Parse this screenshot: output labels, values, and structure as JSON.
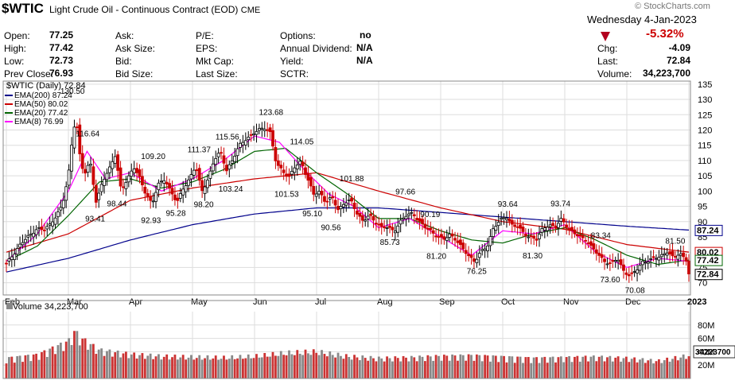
{
  "header": {
    "symbol": "$WTIC",
    "description": "Light Crude Oil - Continuous Contract (EOD)",
    "exchange": "CME",
    "watermark": "© StockCharts.com",
    "date_line": "Wednesday  4-Jan-2023",
    "pct_change": "-5.32%",
    "change_direction_icon": "down-triangle-icon",
    "stats": [
      {
        "label": "Open:",
        "value": "77.25"
      },
      {
        "label": "High:",
        "value": "77.42"
      },
      {
        "label": "Low:",
        "value": "72.73"
      },
      {
        "label": "Prev Close:",
        "value": "76.93"
      },
      {
        "label": "Ask:",
        "value": ""
      },
      {
        "label": "Ask Size:",
        "value": ""
      },
      {
        "label": "Bid:",
        "value": ""
      },
      {
        "label": "Bid Size:",
        "value": ""
      },
      {
        "label": "P/E:",
        "value": ""
      },
      {
        "label": "EPS:",
        "value": ""
      },
      {
        "label": "Mkt Cap:",
        "value": ""
      },
      {
        "label": "Last Size:",
        "value": ""
      },
      {
        "label": "Options:",
        "value": "no"
      },
      {
        "label": "Annual Dividend:",
        "value": "N/A"
      },
      {
        "label": "Yield:",
        "value": "N/A"
      },
      {
        "label": "SCTR:",
        "value": ""
      },
      {
        "label": "Chg:",
        "value": "-4.09"
      },
      {
        "label": "Last:",
        "value": "72.84"
      },
      {
        "label": "Volume:",
        "value": "34,223,700"
      }
    ]
  },
  "colors": {
    "up": "#000000",
    "down": "#cc0000",
    "ema200": "#00008b",
    "ema50": "#cc0000",
    "ema20": "#006400",
    "ema8": "#ff00ff",
    "vol_up": "#888888",
    "vol_down": "#cc3333",
    "grid": "#dddddd"
  },
  "chart_data": [
    {
      "type": "candlestick",
      "title": "$WTIC (Daily) 72.84",
      "legend": [
        {
          "name": "EMA(200) 87.24",
          "color": "#00008b"
        },
        {
          "name": "EMA(50) 80.02",
          "color": "#cc0000"
        },
        {
          "name": "EMA(20) 77.42",
          "color": "#006400"
        },
        {
          "name": "EMA(8) 76.99",
          "color": "#ff00ff"
        }
      ],
      "legend_position": "top-left",
      "y_axis_position": "right",
      "ylim": [
        66,
        136
      ],
      "y_ticks": [
        70,
        75,
        80,
        85,
        90,
        95,
        100,
        105,
        110,
        115,
        120,
        125,
        130,
        135
      ],
      "x_labels": [
        "Feb",
        "Mar",
        "Apr",
        "May",
        "Jun",
        "Jul",
        "Aug",
        "Sep",
        "Oct",
        "Nov",
        "Dec",
        "2023"
      ],
      "grid": true,
      "price_tags": [
        {
          "value": 87.24,
          "label": "87.24",
          "color": "#00008b"
        },
        {
          "value": 80.02,
          "label": "80.02",
          "color": "#cc0000"
        },
        {
          "value": 77.42,
          "label": "77.42",
          "color": "#006400"
        },
        {
          "value": 72.84,
          "label": "72.84",
          "color": "#000000"
        }
      ],
      "annotations": [
        {
          "label": "130.50",
          "value": 130.5,
          "month": 1.05,
          "pos": "above"
        },
        {
          "label": "116.64",
          "value": 116.64,
          "month": 1.3,
          "pos": "above"
        },
        {
          "label": "93.41",
          "value": 93.41,
          "month": 1.45,
          "pos": "below"
        },
        {
          "label": "98.44",
          "value": 98.44,
          "month": 1.8,
          "pos": "below"
        },
        {
          "label": "109.20",
          "value": 109.2,
          "month": 2.35,
          "pos": "above"
        },
        {
          "label": "92.93",
          "value": 92.93,
          "month": 2.35,
          "pos": "below"
        },
        {
          "label": "95.28",
          "value": 95.28,
          "month": 2.75,
          "pos": "below"
        },
        {
          "label": "111.37",
          "value": 111.37,
          "month": 3.1,
          "pos": "above"
        },
        {
          "label": "98.20",
          "value": 98.2,
          "month": 3.2,
          "pos": "below"
        },
        {
          "label": "115.56",
          "value": 115.56,
          "month": 3.55,
          "pos": "above"
        },
        {
          "label": "103.24",
          "value": 103.24,
          "month": 3.6,
          "pos": "below"
        },
        {
          "label": "123.68",
          "value": 123.68,
          "month": 4.25,
          "pos": "above"
        },
        {
          "label": "101.53",
          "value": 101.53,
          "month": 4.5,
          "pos": "below"
        },
        {
          "label": "114.05",
          "value": 114.05,
          "month": 4.75,
          "pos": "above"
        },
        {
          "label": "95.10",
          "value": 95.1,
          "month": 4.95,
          "pos": "below"
        },
        {
          "label": "90.56",
          "value": 90.56,
          "month": 5.25,
          "pos": "below"
        },
        {
          "label": "101.88",
          "value": 101.88,
          "month": 5.55,
          "pos": "above"
        },
        {
          "label": "85.73",
          "value": 85.73,
          "month": 6.2,
          "pos": "below"
        },
        {
          "label": "97.66",
          "value": 97.66,
          "month": 6.45,
          "pos": "above"
        },
        {
          "label": "90.19",
          "value": 90.19,
          "month": 6.85,
          "pos": "above"
        },
        {
          "label": "81.20",
          "value": 81.2,
          "month": 6.95,
          "pos": "below"
        },
        {
          "label": "76.25",
          "value": 76.25,
          "month": 7.6,
          "pos": "below"
        },
        {
          "label": "93.64",
          "value": 93.64,
          "month": 8.1,
          "pos": "above"
        },
        {
          "label": "81.30",
          "value": 81.3,
          "month": 8.5,
          "pos": "below"
        },
        {
          "label": "93.74",
          "value": 93.74,
          "month": 8.95,
          "pos": "above"
        },
        {
          "label": "83.34",
          "value": 83.34,
          "month": 9.6,
          "pos": "above"
        },
        {
          "label": "73.60",
          "value": 73.6,
          "month": 9.75,
          "pos": "below"
        },
        {
          "label": "70.08",
          "value": 70.08,
          "month": 10.15,
          "pos": "below"
        },
        {
          "label": "81.50",
          "value": 81.5,
          "month": 10.8,
          "pos": "above"
        }
      ],
      "close_path": [
        [
          0,
          76
        ],
        [
          0.1,
          79
        ],
        [
          0.2,
          82
        ],
        [
          0.3,
          84
        ],
        [
          0.4,
          86
        ],
        [
          0.5,
          88
        ],
        [
          0.6,
          87
        ],
        [
          0.7,
          89
        ],
        [
          0.8,
          92
        ],
        [
          0.9,
          95
        ],
        [
          1.0,
          105
        ],
        [
          1.05,
          115
        ],
        [
          1.12,
          125
        ],
        [
          1.18,
          112
        ],
        [
          1.25,
          105
        ],
        [
          1.35,
          110
        ],
        [
          1.45,
          96
        ],
        [
          1.55,
          103
        ],
        [
          1.65,
          107
        ],
        [
          1.75,
          112
        ],
        [
          1.85,
          100
        ],
        [
          1.95,
          104
        ],
        [
          2.05,
          108
        ],
        [
          2.15,
          104
        ],
        [
          2.25,
          99
        ],
        [
          2.35,
          96
        ],
        [
          2.45,
          102
        ],
        [
          2.55,
          104
        ],
        [
          2.65,
          100
        ],
        [
          2.75,
          96
        ],
        [
          2.85,
          101
        ],
        [
          2.95,
          104
        ],
        [
          3.05,
          108
        ],
        [
          3.15,
          100
        ],
        [
          3.25,
          104
        ],
        [
          3.35,
          110
        ],
        [
          3.45,
          113
        ],
        [
          3.55,
          107
        ],
        [
          3.65,
          110
        ],
        [
          3.75,
          115
        ],
        [
          3.85,
          117
        ],
        [
          3.95,
          118
        ],
        [
          4.05,
          120
        ],
        [
          4.15,
          121
        ],
        [
          4.25,
          119
        ],
        [
          4.35,
          109
        ],
        [
          4.45,
          107
        ],
        [
          4.55,
          104
        ],
        [
          4.65,
          108
        ],
        [
          4.75,
          110
        ],
        [
          4.85,
          104
        ],
        [
          4.95,
          99
        ],
        [
          5.05,
          100
        ],
        [
          5.15,
          96
        ],
        [
          5.25,
          98
        ],
        [
          5.35,
          94
        ],
        [
          5.45,
          96
        ],
        [
          5.55,
          97
        ],
        [
          5.65,
          93
        ],
        [
          5.75,
          90
        ],
        [
          5.85,
          92
        ],
        [
          5.95,
          90
        ],
        [
          6.05,
          88
        ],
        [
          6.15,
          88
        ],
        [
          6.25,
          87
        ],
        [
          6.35,
          90
        ],
        [
          6.45,
          92
        ],
        [
          6.55,
          93
        ],
        [
          6.65,
          90
        ],
        [
          6.75,
          88
        ],
        [
          6.85,
          87
        ],
        [
          6.95,
          85
        ],
        [
          7.05,
          84
        ],
        [
          7.15,
          86
        ],
        [
          7.25,
          84
        ],
        [
          7.35,
          81
        ],
        [
          7.45,
          79
        ],
        [
          7.55,
          77
        ],
        [
          7.65,
          80
        ],
        [
          7.75,
          82
        ],
        [
          7.85,
          88
        ],
        [
          7.95,
          90
        ],
        [
          8.05,
          92
        ],
        [
          8.15,
          89
        ],
        [
          8.25,
          88
        ],
        [
          8.35,
          86
        ],
        [
          8.45,
          85
        ],
        [
          8.55,
          84
        ],
        [
          8.65,
          88
        ],
        [
          8.75,
          89
        ],
        [
          8.85,
          88
        ],
        [
          8.95,
          91
        ],
        [
          9.05,
          88
        ],
        [
          9.15,
          86
        ],
        [
          9.25,
          85
        ],
        [
          9.35,
          84
        ],
        [
          9.45,
          81
        ],
        [
          9.55,
          79
        ],
        [
          9.65,
          77
        ],
        [
          9.75,
          76
        ],
        [
          9.85,
          78
        ],
        [
          9.95,
          74
        ],
        [
          10.05,
          72
        ],
        [
          10.15,
          74
        ],
        [
          10.25,
          77
        ],
        [
          10.35,
          77
        ],
        [
          10.45,
          78
        ],
        [
          10.55,
          79
        ],
        [
          10.65,
          80
        ],
        [
          10.75,
          78
        ],
        [
          10.85,
          80
        ],
        [
          10.97,
          76.9
        ],
        [
          11.0,
          72.84
        ]
      ],
      "ema200_path": [
        [
          0,
          73.5
        ],
        [
          1,
          78
        ],
        [
          2,
          84
        ],
        [
          3,
          89
        ],
        [
          4,
          92.5
        ],
        [
          5,
          94.5
        ],
        [
          6,
          94.5
        ],
        [
          7,
          93
        ],
        [
          8,
          91.5
        ],
        [
          9,
          90
        ],
        [
          10,
          88.5
        ],
        [
          11,
          87.24
        ]
      ],
      "ema50_path": [
        [
          0,
          80
        ],
        [
          1,
          86
        ],
        [
          2,
          97
        ],
        [
          3,
          101
        ],
        [
          4,
          104
        ],
        [
          5,
          106
        ],
        [
          6,
          100
        ],
        [
          7,
          94.5
        ],
        [
          8,
          90
        ],
        [
          9,
          87.5
        ],
        [
          10,
          82.5
        ],
        [
          11,
          80.02
        ]
      ],
      "ema20_path": [
        [
          0,
          77
        ],
        [
          0.5,
          82
        ],
        [
          1,
          92
        ],
        [
          1.5,
          103
        ],
        [
          2,
          104
        ],
        [
          2.5,
          101
        ],
        [
          3,
          103
        ],
        [
          3.5,
          107
        ],
        [
          4,
          113
        ],
        [
          4.5,
          114
        ],
        [
          5,
          106
        ],
        [
          5.5,
          99
        ],
        [
          6,
          91
        ],
        [
          6.5,
          91
        ],
        [
          7,
          87
        ],
        [
          7.5,
          84
        ],
        [
          8,
          83
        ],
        [
          8.5,
          86
        ],
        [
          9,
          88
        ],
        [
          9.5,
          84
        ],
        [
          10,
          79
        ],
        [
          10.5,
          76
        ],
        [
          11,
          77.42
        ]
      ],
      "ema8_path": [
        [
          0,
          77
        ],
        [
          0.5,
          86
        ],
        [
          1,
          100
        ],
        [
          1.3,
          113
        ],
        [
          1.6,
          104
        ],
        [
          2,
          106
        ],
        [
          2.5,
          100
        ],
        [
          3,
          104
        ],
        [
          3.5,
          110
        ],
        [
          4,
          118
        ],
        [
          4.4,
          116
        ],
        [
          4.8,
          107
        ],
        [
          5.2,
          99
        ],
        [
          5.6,
          95
        ],
        [
          6,
          88
        ],
        [
          6.5,
          91
        ],
        [
          7,
          85
        ],
        [
          7.5,
          79
        ],
        [
          8,
          87
        ],
        [
          8.5,
          86
        ],
        [
          9,
          89
        ],
        [
          9.5,
          80
        ],
        [
          10,
          75
        ],
        [
          10.5,
          78
        ],
        [
          11,
          76.99
        ]
      ]
    },
    {
      "type": "bar",
      "title": "Volume 34,223,700",
      "ylim": [
        0,
        100
      ],
      "y_unit": "M",
      "y_ticks": [
        {
          "value": 20,
          "label": "20M"
        },
        {
          "value": 40,
          "label": "40M"
        },
        {
          "value": 60,
          "label": "60M"
        },
        {
          "value": 80,
          "label": "80M"
        }
      ],
      "last_volume_label": "34223700",
      "volume_path": [
        [
          0,
          30
        ],
        [
          0.5,
          35
        ],
        [
          1,
          55
        ],
        [
          1.1,
          70
        ],
        [
          1.2,
          60
        ],
        [
          1.5,
          42
        ],
        [
          2,
          36
        ],
        [
          2.5,
          33
        ],
        [
          3,
          32
        ],
        [
          3.5,
          31
        ],
        [
          4,
          33
        ],
        [
          4.5,
          38
        ],
        [
          5,
          40
        ],
        [
          5.5,
          33
        ],
        [
          6,
          30
        ],
        [
          6.5,
          31
        ],
        [
          7,
          33
        ],
        [
          7.5,
          34
        ],
        [
          8,
          32
        ],
        [
          8.5,
          30
        ],
        [
          9,
          31
        ],
        [
          9.5,
          32
        ],
        [
          10,
          30
        ],
        [
          10.5,
          26
        ],
        [
          11,
          34.22
        ]
      ]
    }
  ]
}
